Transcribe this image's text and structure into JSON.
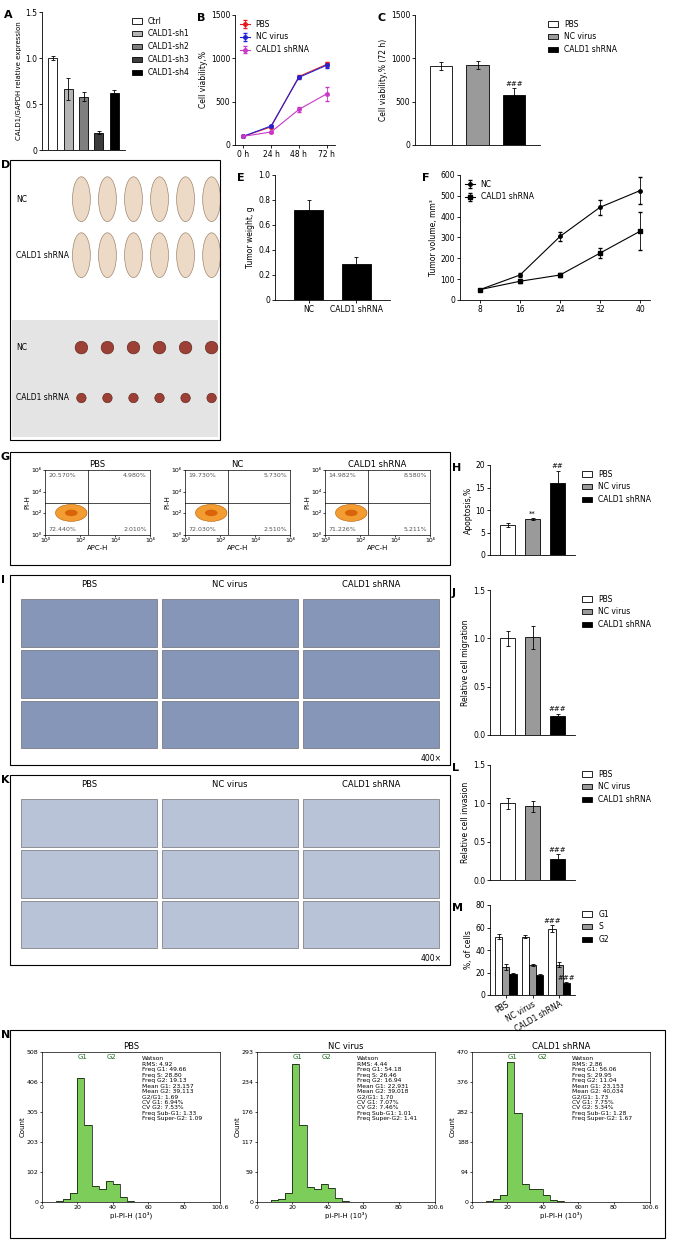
{
  "chart_data": [
    {
      "panel": "A",
      "type": "bar",
      "categories": [
        "Ctrl",
        "CALD1-sh1",
        "CALD1-sh2",
        "CALD1-sh3",
        "CALD1-sh4"
      ],
      "values": [
        1.0,
        0.66,
        0.58,
        0.19,
        0.62
      ],
      "error": [
        0.02,
        0.12,
        0.05,
        0.02,
        0.03
      ],
      "colors": [
        "#ffffff",
        "#b4b4b4",
        "#7f7f7f",
        "#3c3c3c",
        "#000000"
      ],
      "ylabel": "CALD1/GAPDH relative expression",
      "ylim": [
        0,
        1.5
      ],
      "yticks": [
        0,
        0.5,
        {
          "value": 1,
          "label": "1.0"
        },
        1.5
      ],
      "tick_labels": "y",
      "legend": "right"
    },
    {
      "panel": "B",
      "type": "line",
      "categories": [
        "0 h",
        "24 h",
        "48 h",
        "72 h"
      ],
      "series": [
        {
          "name": "PBS",
          "color": "#e41a1c",
          "marker": "circle",
          "values": [
            100,
            210,
            790,
            930
          ],
          "error": [
            5,
            10,
            20,
            30
          ]
        },
        {
          "name": "NC virus",
          "color": "#2323d6",
          "marker": "circle",
          "values": [
            100,
            220,
            780,
            920
          ],
          "error": [
            5,
            10,
            20,
            30
          ]
        },
        {
          "name": "CALD1 shRNA",
          "color": "#c837c8",
          "marker": "circle",
          "values": [
            100,
            150,
            410,
            590
          ],
          "error": [
            5,
            10,
            25,
            80
          ]
        }
      ],
      "ylabel": "Cell viability,%",
      "ylim": [
        0,
        1500
      ],
      "yticks": [
        0,
        500,
        1000,
        1500
      ],
      "legend": "upper left"
    },
    {
      "panel": "C",
      "type": "bar",
      "categories": [
        "PBS",
        "NC virus",
        "CALD1 shRNA"
      ],
      "values": [
        910,
        920,
        580
      ],
      "error": [
        50,
        45,
        75
      ],
      "colors": [
        "#ffffff",
        "#9a9a9a",
        "#000000"
      ],
      "ylabel": "Cell viability,% (72 h)",
      "ylim": [
        0,
        1500
      ],
      "yticks": [
        0,
        500,
        1000,
        1500
      ],
      "tick_labels": "y",
      "legend": "right",
      "annotations": [
        {
          "text": "###",
          "category": "CALD1 shRNA"
        }
      ]
    },
    {
      "panel": "D",
      "type": "photo",
      "groups": [
        "NC",
        "CALD1 shRNA"
      ],
      "mice_per_group": 6
    },
    {
      "panel": "E",
      "type": "bar",
      "categories": [
        "NC",
        "CALD1 shRNA"
      ],
      "values": [
        0.72,
        0.29
      ],
      "error": [
        0.08,
        0.05
      ],
      "colors": [
        "#000000",
        "#000000"
      ],
      "ylabel": "Tumor weight, g",
      "ylim": [
        0,
        1.0
      ],
      "yticks": [
        0,
        0.2,
        0.4,
        0.6,
        0.8,
        {
          "value": 1.0,
          "label": "1.0"
        }
      ]
    },
    {
      "panel": "F",
      "type": "line",
      "x": [
        8,
        16,
        24,
        32,
        40
      ],
      "series": [
        {
          "name": "NC",
          "color": "#000000",
          "marker": "circle",
          "values": [
            50,
            120,
            305,
            445,
            525
          ],
          "error": [
            5,
            10,
            20,
            35,
            65
          ]
        },
        {
          "name": "CALD1 shRNA",
          "color": "#000000",
          "marker": "square",
          "values": [
            50,
            90,
            120,
            225,
            330
          ],
          "error": [
            5,
            8,
            10,
            25,
            90
          ]
        }
      ],
      "ylabel": "Tumor volume, mm³",
      "xlim": [
        4,
        42
      ],
      "xticks": [
        8,
        16,
        24,
        32,
        40
      ],
      "ylim": [
        0,
        600
      ],
      "yticks": [
        0,
        100,
        200,
        300,
        400,
        500,
        600
      ],
      "legend": "upper left"
    },
    {
      "panel": "G",
      "type": "flow_scatter",
      "xlabel": "APC-H",
      "ylabel": "PI-H",
      "log": true,
      "xlim": [
        1,
        1000000
      ],
      "ylim": [
        1,
        1000000
      ],
      "xticks": [
        {
          "value": 1,
          "label": "10⁰"
        },
        {
          "value": 100,
          "label": "10²"
        },
        {
          "value": 10000,
          "label": "10⁴"
        },
        {
          "value": 1000000,
          "label": "10⁶"
        }
      ],
      "yticks": [
        {
          "value": 1,
          "label": "10⁰"
        },
        {
          "value": 100,
          "label": "10²"
        },
        {
          "value": 10000,
          "label": "10⁴"
        },
        {
          "value": 1000000,
          "label": "10⁶"
        }
      ],
      "gate": [
        300,
        1000
      ],
      "plots": [
        {
          "title": "PBS",
          "quadrants": {
            "upper left": "20.570%",
            "upper right": "4.980%",
            "lower left": "72.440%",
            "lower right": "2.010%"
          }
        },
        {
          "title": "NC",
          "quadrants": {
            "upper left": "19.730%",
            "upper right": "5.730%",
            "lower left": "72.030%",
            "lower right": "2.510%"
          }
        },
        {
          "title": "CALD1 shRNA",
          "quadrants": {
            "upper left": "14.982%",
            "upper right": "8.580%",
            "lower left": "71.226%",
            "lower right": "5.211%"
          }
        }
      ]
    },
    {
      "panel": "H",
      "type": "bar",
      "categories": [
        "PBS",
        "NC virus",
        "CALD1 shRNA"
      ],
      "values": [
        6.7,
        8.0,
        15.9
      ],
      "error": [
        0.4,
        0.2,
        2.8
      ],
      "colors": [
        "#ffffff",
        "#9a9a9a",
        "#000000"
      ],
      "ylabel": "Apoptosis,%",
      "ylim": [
        0,
        20
      ],
      "yticks": [
        0,
        5,
        10,
        15,
        20
      ],
      "tick_labels": "y",
      "legend": "right",
      "annotations": [
        {
          "text": "**",
          "category": "NC virus"
        },
        {
          "text": "##",
          "category": "CALD1 shRNA"
        }
      ]
    },
    {
      "panel": "I",
      "type": "photo_grid",
      "columns": [
        "PBS",
        "NC virus",
        "CALD1 shRNA"
      ],
      "rows": 3,
      "magnification": "400×"
    },
    {
      "panel": "J",
      "type": "bar",
      "categories": [
        "PBS",
        "NC virus",
        "CALD1 shRNA"
      ],
      "values": [
        1.0,
        1.01,
        0.2
      ],
      "error": [
        0.08,
        0.12,
        0.02
      ],
      "colors": [
        "#ffffff",
        "#9a9a9a",
        "#000000"
      ],
      "ylabel": "Relative cell migration",
      "ylim": [
        0,
        1.5
      ],
      "yticks": [
        {
          "value": 0,
          "label": "0.0"
        },
        0.5,
        {
          "value": 1,
          "label": "1.0"
        },
        1.5
      ],
      "tick_labels": "y",
      "legend": "right",
      "annotations": [
        {
          "text": "###",
          "category": "CALD1 shRNA"
        }
      ]
    },
    {
      "panel": "K",
      "type": "photo_grid",
      "columns": [
        "PBS",
        "NC virus",
        "CALD1 shRNA"
      ],
      "rows": 3,
      "magnification": "400×"
    },
    {
      "panel": "L",
      "type": "bar",
      "categories": [
        "PBS",
        "NC virus",
        "CALD1 shRNA"
      ],
      "values": [
        1.0,
        0.96,
        0.28
      ],
      "error": [
        0.07,
        0.07,
        0.06
      ],
      "colors": [
        "#ffffff",
        "#9a9a9a",
        "#000000"
      ],
      "ylabel": "Relative cell invasion",
      "ylim": [
        0,
        1.5
      ],
      "yticks": [
        {
          "value": 0,
          "label": "0.0"
        },
        0.5,
        {
          "value": 1,
          "label": "1.0"
        },
        1.5
      ],
      "tick_labels": "y",
      "legend": "right",
      "annotations": [
        {
          "text": "###",
          "category": "CALD1 shRNA"
        }
      ]
    },
    {
      "panel": "M",
      "type": "bar",
      "categories": [
        "PBS",
        "NC virus",
        "CALD1 shRNA"
      ],
      "series": [
        {
          "name": "G1",
          "color": "#ffffff",
          "values": [
            52,
            52,
            59
          ],
          "error": [
            2,
            1.5,
            3
          ]
        },
        {
          "name": "S",
          "color": "#9a9a9a",
          "values": [
            25,
            27,
            27
          ],
          "error": [
            3,
            1,
            2.5
          ]
        },
        {
          "name": "G2",
          "color": "#000000",
          "values": [
            19,
            17.5,
            10.5
          ],
          "error": [
            0.5,
            0.8,
            1
          ]
        }
      ],
      "ylabel": "%, of cells",
      "ylim": [
        0,
        80
      ],
      "yticks": [
        0,
        20,
        40,
        60,
        80
      ],
      "legend": "right",
      "annotations": [
        {
          "text": "###",
          "category": "CALD1 shRNA",
          "series": "G1"
        },
        {
          "text": "###",
          "category": "CALD1 shRNA",
          "series": "G2"
        }
      ]
    },
    {
      "panel": "N",
      "type": "histogram",
      "xlabel": "pi-PI-H (10³)",
      "ylabel": "Count",
      "bins": [
        0,
        4,
        8,
        12,
        16,
        20,
        24,
        28,
        32,
        36,
        40,
        44,
        48,
        52,
        56,
        60,
        64,
        68,
        72,
        76,
        80,
        84,
        88,
        92,
        96,
        100
      ],
      "xlim": [
        0,
        100.6
      ],
      "xticks": [
        0,
        20,
        40,
        60,
        80,
        100.6
      ],
      "plots": [
        {
          "title": "PBS",
          "counts": [
            0,
            0,
            4,
            10,
            30,
            420,
            260,
            55,
            45,
            70,
            60,
            18,
            4,
            0,
            0,
            0,
            0,
            0,
            0,
            0,
            0,
            0,
            0,
            0,
            0
          ],
          "ylim": [
            0,
            508
          ],
          "yticks": [
            0,
            102,
            203,
            305,
            406,
            508
          ],
          "peaks": [
            {
              "label": "G1",
              "x": 23.157
            },
            {
              "label": "G2",
              "x": 39.113
            }
          ],
          "stats": [
            "Watson",
            "RMS: 4.92",
            "Freq G1: 49.66",
            "Freq S: 28.80",
            "Freq G2: 19.13",
            "Mean G1: 23,157",
            "Mean G2: 39,113",
            "G2/G1: 1.69",
            "CV G1: 6.94%",
            "CV G2: 7.53%",
            "Freq Sub-G1: 1.33",
            "Freq Super-G2: 1.09"
          ]
        },
        {
          "title": "NC virus",
          "counts": [
            0,
            0,
            3,
            6,
            18,
            270,
            150,
            30,
            25,
            35,
            28,
            8,
            2,
            0,
            0,
            0,
            0,
            0,
            0,
            0,
            0,
            0,
            0,
            0,
            0
          ],
          "ylim": [
            0,
            293
          ],
          "yticks": [
            0,
            59,
            117,
            176,
            234,
            293
          ],
          "peaks": [
            {
              "label": "G1",
              "x": 22.931
            },
            {
              "label": "G2",
              "x": 39.018
            }
          ],
          "stats": [
            "Watson",
            "RMS: 4.44",
            "Freq G1: 54.18",
            "Freq S: 26.46",
            "Freq G2: 16.94",
            "Mean G1: 22,931",
            "Mean G2: 39,018",
            "G2/G1: 1.70",
            "CV G1: 7.07%",
            "CV G2: 7.46%",
            "Freq Sub-G1: 1.01",
            "Freq Super-G2: 1.41"
          ]
        },
        {
          "title": "CALD1 shRNA",
          "counts": [
            0,
            0,
            3,
            8,
            22,
            440,
            280,
            55,
            40,
            40,
            22,
            6,
            2,
            0,
            0,
            0,
            0,
            0,
            0,
            0,
            0,
            0,
            0,
            0,
            0
          ],
          "ylim": [
            0,
            470
          ],
          "yticks": [
            0,
            94,
            188,
            282,
            376,
            470
          ],
          "peaks": [
            {
              "label": "G1",
              "x": 23.153
            },
            {
              "label": "G2",
              "x": 40.034
            }
          ],
          "stats": [
            "Watson",
            "RMS: 2.86",
            "Freq G1: 56.06",
            "Freq S: 29.95",
            "Freq G2: 11.04",
            "Mean G1: 23,153",
            "Mean G2: 40,034",
            "G2/G1: 1.73",
            "CV G1: 7.75%",
            "CV G2: 5.34%",
            "Freq Sub-G1: 1.28",
            "Freq Super-G2: 1.67"
          ]
        }
      ]
    }
  ]
}
